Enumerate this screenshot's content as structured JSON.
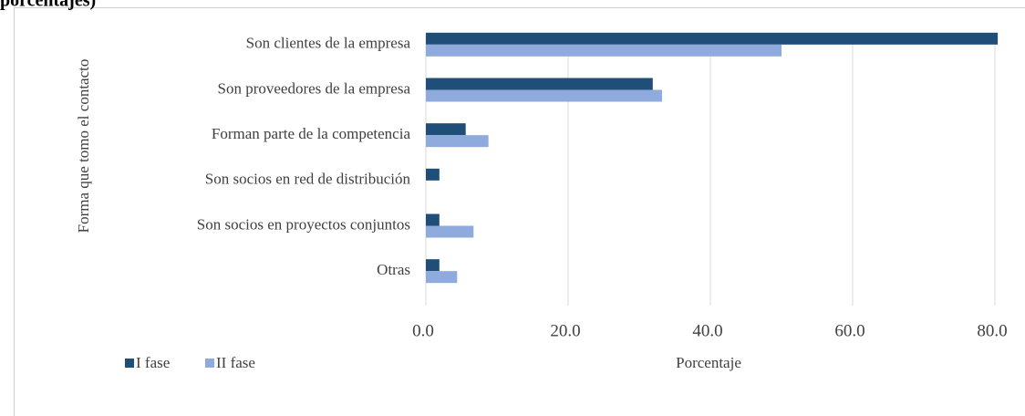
{
  "chart_data": {
    "type": "bar",
    "orientation": "horizontal",
    "title": "porcentajes)",
    "x_label": "Porcentaje",
    "y_label": "Forma que tomo el contacto",
    "categories": [
      "Son clientes de la empresa",
      "Son proveedores de la empresa",
      "Forman parte de la competencia",
      "Son socios en red de distribución",
      "Son socios en proyectos conjuntos",
      "Otras"
    ],
    "series": [
      {
        "name": "I fase",
        "color": "#1f4e79",
        "values": [
          80.4,
          31.9,
          5.6,
          1.9,
          1.9,
          1.9
        ]
      },
      {
        "name": "II fase",
        "color": "#8faadc",
        "values": [
          50.0,
          33.2,
          8.8,
          null,
          6.7,
          4.4
        ]
      }
    ],
    "xlim": [
      0,
      81
    ],
    "xticks": [
      {
        "value": 0,
        "label": "0.0"
      },
      {
        "value": 20,
        "label": "20.0"
      },
      {
        "value": 40,
        "label": "40.0"
      },
      {
        "value": 60,
        "label": "60.0"
      },
      {
        "value": 80,
        "label": "80.0"
      }
    ],
    "grid": true,
    "legend": "bottom-left"
  }
}
